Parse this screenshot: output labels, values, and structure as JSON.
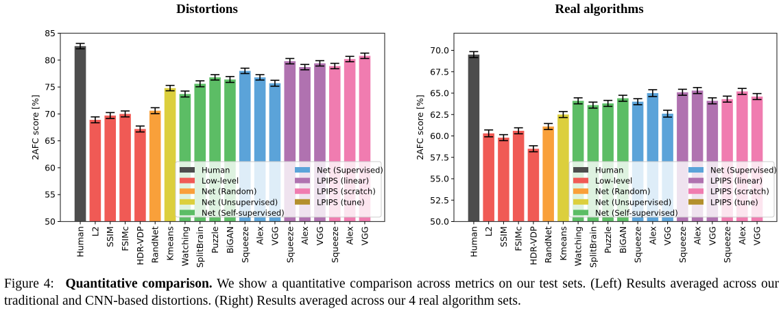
{
  "chart_data": [
    {
      "type": "bar",
      "title": "Distortions",
      "xlabel": "",
      "ylabel": "2AFC score [%]",
      "ylim": [
        50,
        85
      ],
      "yticks": [
        50,
        55,
        60,
        65,
        70,
        75,
        80,
        85
      ],
      "grid": false,
      "legend_position": "lower-right",
      "categories": [
        "Human",
        "L2",
        "SSIM",
        "FSIMc",
        "HDR-VDP",
        "RandNet",
        "Kmeans",
        "Watching",
        "SplitBrain",
        "Puzzle",
        "BiGAN",
        "Squeeze",
        "Alex",
        "VGG",
        "Squeeze",
        "Alex",
        "VGG",
        "Squeeze",
        "Alex",
        "VGG"
      ],
      "groups": [
        "Human",
        "Low-level",
        "Low-level",
        "Low-level",
        "Low-level",
        "Net (Random)",
        "Net (Unsupervised)",
        "Net (Self-supervised)",
        "Net (Self-supervised)",
        "Net (Self-supervised)",
        "Net (Self-supervised)",
        "Net (Supervised)",
        "Net (Supervised)",
        "Net (Supervised)",
        "LPIPS (linear)",
        "LPIPS (linear)",
        "LPIPS (linear)",
        "LPIPS (scratch)",
        "LPIPS (scratch)",
        "LPIPS (scratch)"
      ],
      "values": [
        82.6,
        68.9,
        69.7,
        70.0,
        67.2,
        70.6,
        74.8,
        73.7,
        75.6,
        76.8,
        76.4,
        78.0,
        76.8,
        75.7,
        79.8,
        78.7,
        79.4,
        78.9,
        80.2,
        80.8
      ],
      "errors": [
        0.5,
        0.55,
        0.55,
        0.55,
        0.55,
        0.55,
        0.5,
        0.55,
        0.55,
        0.5,
        0.55,
        0.5,
        0.5,
        0.55,
        0.5,
        0.5,
        0.5,
        0.5,
        0.5,
        0.5
      ]
    },
    {
      "type": "bar",
      "title": "Real algorithms",
      "xlabel": "",
      "ylabel": "2AFC score [%]",
      "ylim": [
        50,
        72
      ],
      "yticks": [
        50.0,
        52.5,
        55.0,
        57.5,
        60.0,
        62.5,
        65.0,
        67.5,
        70.0
      ],
      "ytick_labels": [
        "50.0",
        "52.5",
        "55.0",
        "57.5",
        "60.0",
        "62.5",
        "65.0",
        "67.5",
        "70.0"
      ],
      "grid": false,
      "legend_position": "lower-right",
      "categories": [
        "Human",
        "L2",
        "SSIM",
        "FSIMc",
        "HDR-VDP",
        "RandNet",
        "Kmeans",
        "Watching",
        "SplitBrain",
        "Puzzle",
        "BiGAN",
        "Squeeze",
        "Alex",
        "VGG",
        "Squeeze",
        "Alex",
        "VGG",
        "Squeeze",
        "Alex",
        "VGG"
      ],
      "groups": [
        "Human",
        "Low-level",
        "Low-level",
        "Low-level",
        "Low-level",
        "Net (Random)",
        "Net (Unsupervised)",
        "Net (Self-supervised)",
        "Net (Self-supervised)",
        "Net (Self-supervised)",
        "Net (Self-supervised)",
        "Net (Supervised)",
        "Net (Supervised)",
        "Net (Supervised)",
        "LPIPS (linear)",
        "LPIPS (linear)",
        "LPIPS (linear)",
        "LPIPS (scratch)",
        "LPIPS (scratch)",
        "LPIPS (scratch)"
      ],
      "values": [
        69.5,
        60.3,
        59.8,
        60.6,
        58.5,
        61.1,
        62.5,
        64.1,
        63.6,
        63.8,
        64.4,
        64.0,
        65.0,
        62.6,
        65.1,
        65.3,
        64.1,
        64.3,
        65.2,
        64.6
      ],
      "errors": [
        0.35,
        0.4,
        0.35,
        0.35,
        0.35,
        0.35,
        0.35,
        0.35,
        0.35,
        0.35,
        0.35,
        0.35,
        0.4,
        0.4,
        0.35,
        0.35,
        0.35,
        0.35,
        0.35,
        0.35
      ]
    }
  ],
  "legend": {
    "entries": [
      {
        "label": "Human",
        "color": "#4d4d4d"
      },
      {
        "label": "Low-level",
        "color": "#f05a55"
      },
      {
        "label": "Net (Random)",
        "color": "#f9a03a"
      },
      {
        "label": "Net (Unsupervised)",
        "color": "#dccf3d"
      },
      {
        "label": "Net (Self-supervised)",
        "color": "#5cbd65"
      },
      {
        "label": "Net (Supervised)",
        "color": "#5ba3d9"
      },
      {
        "label": "LPIPS (linear)",
        "color": "#b072b0"
      },
      {
        "label": "LPIPS (scratch)",
        "color": "#f07cb0"
      },
      {
        "label": "LPIPS (tune)",
        "color": "#b3902d"
      }
    ]
  },
  "caption": {
    "figure_number": "Figure 4:",
    "bold_title": "Quantitative comparison.",
    "text": "We show a quantitative comparison across metrics on our test sets. (Left) Results averaged across our traditional and CNN-based distortions. (Right) Results averaged across our 4 real algorithm sets."
  }
}
